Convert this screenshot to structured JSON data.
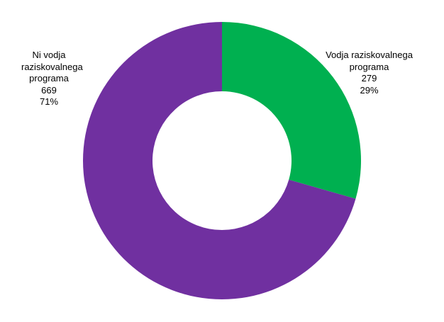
{
  "chart_data": {
    "type": "donut",
    "categories": [
      "Vodja raziskovalnega programa",
      "Ni vodja raziskovalnega programa"
    ],
    "values": [
      279,
      669
    ],
    "percent_labels": [
      "29%",
      "71%"
    ],
    "colors": [
      "#00b050",
      "#7030a0"
    ]
  }
}
